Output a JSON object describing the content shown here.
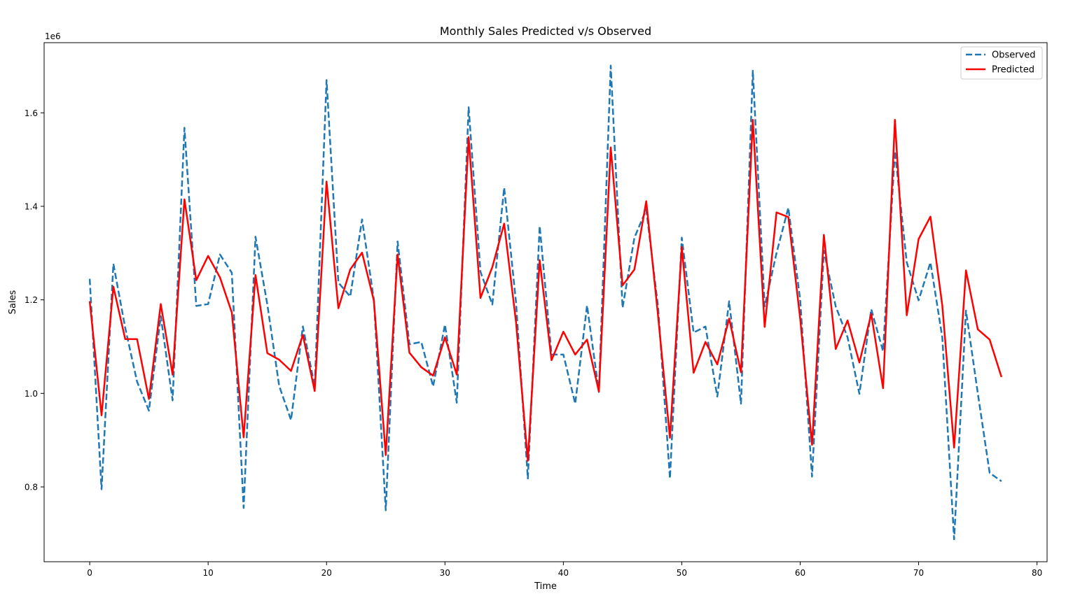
{
  "chart_data": {
    "type": "line",
    "title": "Monthly Sales Predicted v/s Observed",
    "xlabel": "Time",
    "ylabel": "Sales",
    "y_offset_label": "1e6",
    "y_scale": 1000000,
    "xlim": [
      -3.85,
      80.85
    ],
    "ylim": [
      640000,
      1750000
    ],
    "x_ticks": [
      0,
      10,
      20,
      30,
      40,
      50,
      60,
      70,
      80
    ],
    "x_tick_labels": [
      "0",
      "10",
      "20",
      "30",
      "40",
      "50",
      "60",
      "70",
      "80"
    ],
    "y_ticks": [
      800000,
      1000000,
      1200000,
      1400000,
      1600000
    ],
    "y_tick_labels": [
      "0.8",
      "1.0",
      "1.2",
      "1.4",
      "1.6"
    ],
    "grid": false,
    "legend_position": "top-right",
    "x": [
      0,
      1,
      2,
      3,
      4,
      5,
      6,
      7,
      8,
      9,
      10,
      11,
      12,
      13,
      14,
      15,
      16,
      17,
      18,
      19,
      20,
      21,
      22,
      23,
      24,
      25,
      26,
      27,
      28,
      29,
      30,
      31,
      32,
      33,
      34,
      35,
      36,
      37,
      38,
      39,
      40,
      41,
      42,
      43,
      44,
      45,
      46,
      47,
      48,
      49,
      50,
      51,
      52,
      53,
      54,
      55,
      56,
      57,
      58,
      59,
      60,
      61,
      62,
      63,
      64,
      65,
      66,
      67,
      68,
      69,
      70,
      71,
      72,
      73,
      74,
      75,
      76,
      77
    ],
    "series": [
      {
        "name": "Observed",
        "color": "#1f77b4",
        "style": "dashed",
        "values": [
          1245000,
          795000,
          1277000,
          1140000,
          1025000,
          963000,
          1165000,
          985000,
          1568000,
          1187000,
          1191000,
          1297000,
          1258000,
          755000,
          1335000,
          1190000,
          1016000,
          943000,
          1143000,
          1015000,
          1670000,
          1237000,
          1207000,
          1372000,
          1200000,
          750000,
          1325000,
          1105000,
          1110000,
          1015000,
          1147000,
          980000,
          1612000,
          1260000,
          1190000,
          1440000,
          1195000,
          818000,
          1358000,
          1083000,
          1083000,
          978000,
          1188000,
          1003000,
          1701000,
          1183000,
          1333000,
          1393000,
          1185000,
          818000,
          1333000,
          1130000,
          1143000,
          993000,
          1197000,
          978000,
          1690000,
          1186000,
          1300000,
          1397000,
          1200000,
          822000,
          1305000,
          1186000,
          1120000,
          999000,
          1180000,
          1090000,
          1518000,
          1280000,
          1199000,
          1280000,
          1120000,
          688000,
          1177000,
          1000000,
          830000,
          812000
        ]
      },
      {
        "name": "Predicted",
        "color": "#ff0000",
        "style": "solid",
        "values": [
          1197000,
          953000,
          1228000,
          1116000,
          1116000,
          988000,
          1191000,
          1040000,
          1415000,
          1242000,
          1294000,
          1248000,
          1173000,
          906000,
          1253000,
          1086000,
          1072000,
          1048000,
          1125000,
          1005000,
          1453000,
          1182000,
          1265000,
          1301000,
          1198000,
          868000,
          1297000,
          1087000,
          1056000,
          1038000,
          1120000,
          1040000,
          1548000,
          1204000,
          1270000,
          1363000,
          1153000,
          856000,
          1285000,
          1071000,
          1132000,
          1083000,
          1115000,
          1004000,
          1526000,
          1231000,
          1265000,
          1411000,
          1165000,
          905000,
          1313000,
          1044000,
          1110000,
          1062000,
          1160000,
          1045000,
          1585000,
          1142000,
          1387000,
          1377000,
          1160000,
          890000,
          1339000,
          1095000,
          1156000,
          1066000,
          1170000,
          1011000,
          1585000,
          1167000,
          1330000,
          1378000,
          1188000,
          884000,
          1263000,
          1137000,
          1115000,
          1035000
        ]
      }
    ]
  }
}
